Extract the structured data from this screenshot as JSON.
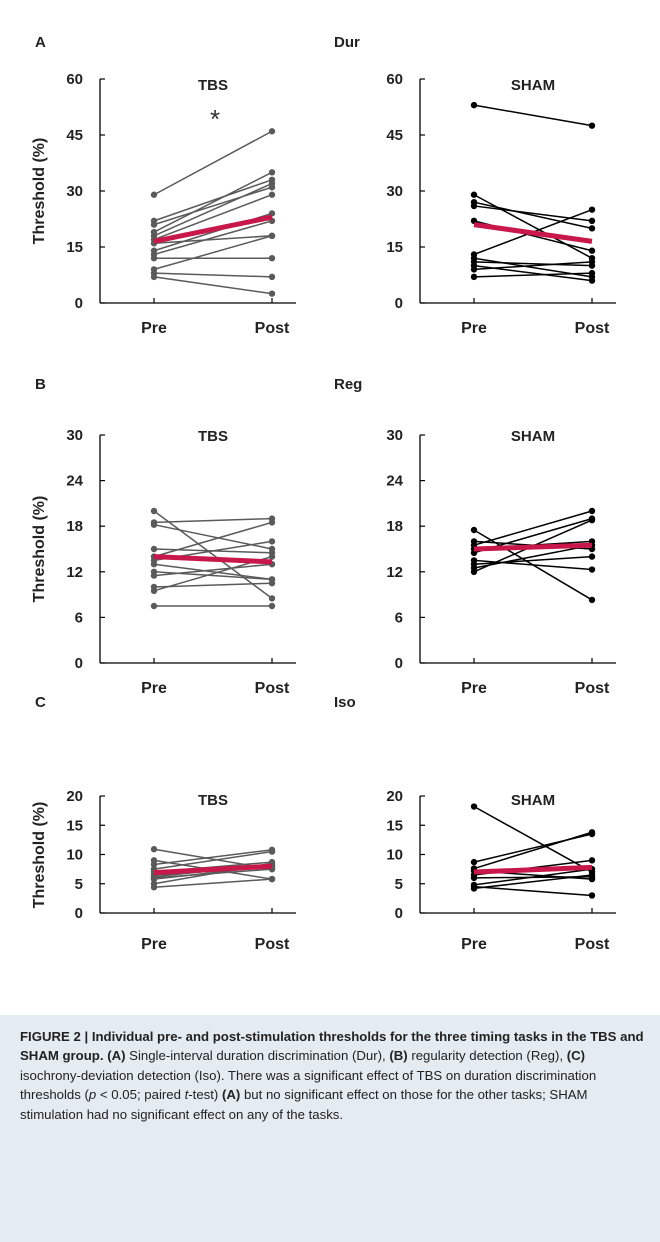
{
  "figure": {
    "panels": [
      {
        "letter": "A",
        "task": "Dur"
      },
      {
        "letter": "B",
        "task": "Reg"
      },
      {
        "letter": "C",
        "task": "Iso"
      }
    ]
  },
  "styles": {
    "individual_tbs": "#5a5a5a",
    "individual_sham": "#000000",
    "mean": "#c8174b",
    "caption_bg": "#e4ebf1"
  },
  "chart_data": [
    {
      "type": "line",
      "panel": "A",
      "task": "Dur",
      "title": "TBS",
      "ylabel": "Threshold (%)",
      "ylim": [
        0,
        60
      ],
      "yticks": [
        0,
        15,
        30,
        45,
        60
      ],
      "categories": [
        "Pre",
        "Post"
      ],
      "annotation": "*",
      "series": [
        {
          "values": [
            29,
            46
          ]
        },
        {
          "values": [
            22,
            33
          ]
        },
        {
          "values": [
            21,
            31
          ]
        },
        {
          "values": [
            19,
            35
          ]
        },
        {
          "values": [
            18,
            32
          ]
        },
        {
          "values": [
            17,
            29
          ]
        },
        {
          "values": [
            16,
            18
          ]
        },
        {
          "values": [
            14,
            24
          ]
        },
        {
          "values": [
            13,
            22
          ]
        },
        {
          "values": [
            12,
            12
          ]
        },
        {
          "values": [
            9,
            18
          ]
        },
        {
          "values": [
            8,
            7
          ]
        },
        {
          "values": [
            7,
            2.5
          ]
        }
      ],
      "mean": [
        16.5,
        23
      ]
    },
    {
      "type": "line",
      "panel": "A",
      "task": "Dur",
      "title": "SHAM",
      "ylabel": "",
      "ylim": [
        0,
        60
      ],
      "yticks": [
        0,
        15,
        30,
        45,
        60
      ],
      "categories": [
        "Pre",
        "Post"
      ],
      "series": [
        {
          "values": [
            53,
            47.5
          ]
        },
        {
          "values": [
            29,
            12
          ]
        },
        {
          "values": [
            27,
            20
          ]
        },
        {
          "values": [
            26,
            22
          ]
        },
        {
          "values": [
            22,
            14
          ]
        },
        {
          "values": [
            13,
            25
          ]
        },
        {
          "values": [
            12,
            7
          ]
        },
        {
          "values": [
            11,
            10
          ]
        },
        {
          "values": [
            10,
            6
          ]
        },
        {
          "values": [
            9,
            11
          ]
        },
        {
          "values": [
            7,
            8
          ]
        }
      ],
      "mean": [
        21,
        16.5
      ]
    },
    {
      "type": "line",
      "panel": "B",
      "task": "Reg",
      "title": "TBS",
      "ylabel": "Threshold (%)",
      "ylim": [
        0,
        30
      ],
      "yticks": [
        0,
        6,
        12,
        18,
        24,
        30
      ],
      "categories": [
        "Pre",
        "Post"
      ],
      "series": [
        {
          "values": [
            20,
            8.5
          ]
        },
        {
          "values": [
            18.5,
            19
          ]
        },
        {
          "values": [
            18.2,
            15
          ]
        },
        {
          "values": [
            15,
            14.5
          ]
        },
        {
          "values": [
            14,
            18.5
          ]
        },
        {
          "values": [
            13.5,
            16
          ]
        },
        {
          "values": [
            13,
            11
          ]
        },
        {
          "values": [
            12,
            11
          ]
        },
        {
          "values": [
            11.5,
            13
          ]
        },
        {
          "values": [
            10,
            10.5
          ]
        },
        {
          "values": [
            9.5,
            14
          ]
        },
        {
          "values": [
            7.5,
            7.5
          ]
        }
      ],
      "mean": [
        14,
        13.3
      ]
    },
    {
      "type": "line",
      "panel": "B",
      "task": "Reg",
      "title": "SHAM",
      "ylabel": "",
      "ylim": [
        0,
        30
      ],
      "yticks": [
        0,
        6,
        12,
        18,
        24,
        30
      ],
      "categories": [
        "Pre",
        "Post"
      ],
      "series": [
        {
          "values": [
            17.5,
            8.3
          ]
        },
        {
          "values": [
            16,
            15
          ]
        },
        {
          "values": [
            15.5,
            20
          ]
        },
        {
          "values": [
            15,
            16
          ]
        },
        {
          "values": [
            14.5,
            19
          ]
        },
        {
          "values": [
            13.5,
            12.3
          ]
        },
        {
          "values": [
            13,
            14
          ]
        },
        {
          "values": [
            12.5,
            15.5
          ]
        },
        {
          "values": [
            12,
            18.8
          ]
        }
      ],
      "mean": [
        15,
        15.5
      ]
    },
    {
      "type": "line",
      "panel": "C",
      "task": "Iso",
      "title": "TBS",
      "ylabel": "Threshold (%)",
      "ylim": [
        0,
        20
      ],
      "yticks": [
        0,
        5,
        10,
        15,
        20
      ],
      "categories": [
        "Pre",
        "Post"
      ],
      "series": [
        {
          "values": [
            10.9,
            7.5
          ]
        },
        {
          "values": [
            9,
            5.8
          ]
        },
        {
          "values": [
            8.3,
            10.8
          ]
        },
        {
          "values": [
            7.5,
            10.5
          ]
        },
        {
          "values": [
            7,
            8.7
          ]
        },
        {
          "values": [
            6.5,
            7.8
          ]
        },
        {
          "values": [
            6.2,
            8.3
          ]
        },
        {
          "values": [
            6,
            7.5
          ]
        },
        {
          "values": [
            5.8,
            8
          ]
        },
        {
          "values": [
            5,
            8.5
          ]
        },
        {
          "values": [
            4.4,
            5.8
          ]
        }
      ],
      "mean": [
        6.9,
        8
      ]
    },
    {
      "type": "line",
      "panel": "C",
      "task": "Iso",
      "title": "SHAM",
      "ylabel": "",
      "ylim": [
        0,
        20
      ],
      "yticks": [
        0,
        5,
        10,
        15,
        20
      ],
      "categories": [
        "Pre",
        "Post"
      ],
      "series": [
        {
          "values": [
            18.2,
            7
          ]
        },
        {
          "values": [
            8.7,
            13.5
          ]
        },
        {
          "values": [
            7.6,
            13.8
          ]
        },
        {
          "values": [
            7.2,
            5.8
          ]
        },
        {
          "values": [
            6.5,
            9
          ]
        },
        {
          "values": [
            6,
            6.2
          ]
        },
        {
          "values": [
            4.8,
            7.5
          ]
        },
        {
          "values": [
            4.5,
            3
          ]
        },
        {
          "values": [
            4.2,
            6.5
          ]
        }
      ],
      "mean": [
        7,
        7.8
      ]
    }
  ],
  "caption": {
    "label": "FIGURE 2 | Individual pre- and post-stimulation thresholds for the three timing tasks in the TBS and SHAM group.",
    "segments": [
      {
        "text": "(A)",
        "style": "bold"
      },
      {
        "text": " Single-interval duration discrimination (Dur), ",
        "style": ""
      },
      {
        "text": "(B)",
        "style": "bold"
      },
      {
        "text": " regularity detection (Reg), ",
        "style": ""
      },
      {
        "text": "(C)",
        "style": "bold"
      },
      {
        "text": " isochrony-deviation detection (Iso). There was a significant effect of TBS on duration discrimination thresholds (",
        "style": ""
      },
      {
        "text": "p",
        "style": "ital"
      },
      {
        "text": " < 0.05; paired ",
        "style": ""
      },
      {
        "text": "t",
        "style": "ital"
      },
      {
        "text": "-test) ",
        "style": ""
      },
      {
        "text": "(A)",
        "style": "bold"
      },
      {
        "text": " but no significant effect on those for the other tasks; SHAM stimulation had no significant effect on any of the tasks.",
        "style": ""
      }
    ]
  }
}
